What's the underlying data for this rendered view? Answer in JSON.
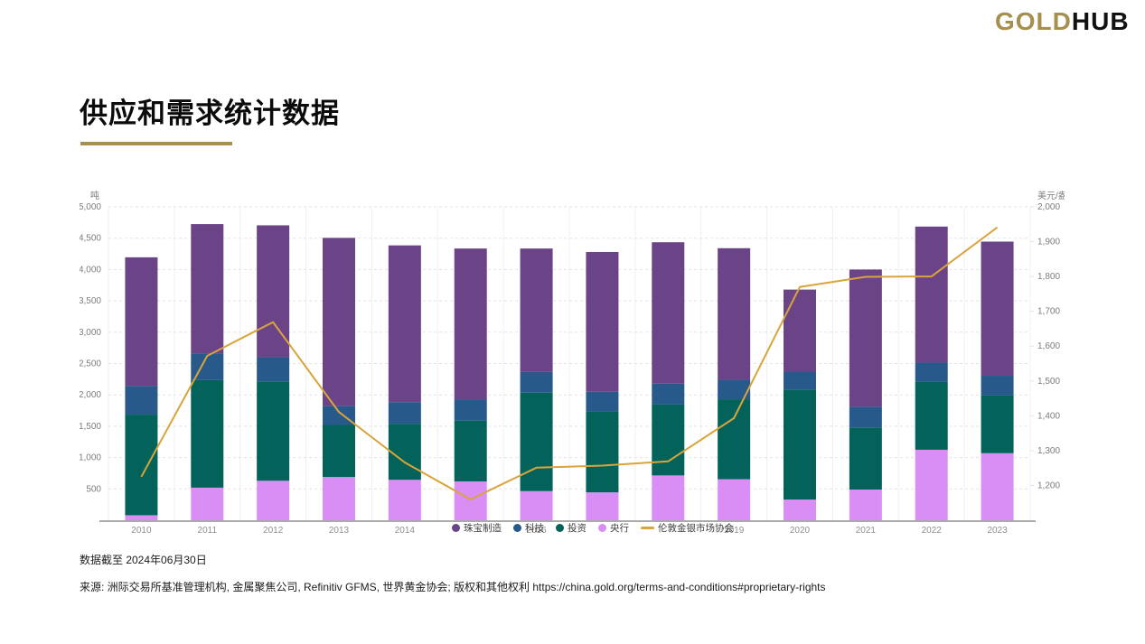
{
  "logo": {
    "gold": "GOLD",
    "hub": "HUB"
  },
  "page_title": "供应和需求统计数据",
  "footer": {
    "data_as_of": "数据截至 2024年06月30日",
    "source": "来源:  洲际交易所基准管理机构, 金属聚焦公司, Refinitiv GFMS, 世界黄金协会; 版权和其他权利 https://china.gold.org/terms-and-conditions#proprietary-rights"
  },
  "colors": {
    "brand_gold": "#a5904f",
    "jewellery_purple": "#6b4487",
    "technology_blue": "#27598b",
    "investment_teal": "#03635a",
    "central_bank_violet": "#d98ef5",
    "price_line_gold": "#d9a43b",
    "gridline": "#e3e3e3",
    "axis_line": "#aaaaaa",
    "tick_text": "#7c7c7c",
    "x_label_text": "#8f8f8f"
  },
  "chart_data": {
    "type": "bar",
    "subtype": "stacked-bars-with-line-overlay",
    "categories": [
      "2010",
      "2011",
      "2012",
      "2013",
      "2014",
      "2015",
      "2016",
      "2017",
      "2018",
      "2019",
      "2020",
      "2021",
      "2022",
      "2023"
    ],
    "series": [
      {
        "name": "珠宝制造",
        "type": "bar",
        "color": "#6b4487",
        "values": [
          2050,
          2065,
          2105,
          2680,
          2500,
          2405,
          1970,
          2230,
          2255,
          2100,
          1310,
          2190,
          2170,
          2140
        ]
      },
      {
        "name": "科技",
        "type": "bar",
        "color": "#27598b",
        "values": [
          460,
          425,
          385,
          305,
          345,
          340,
          330,
          320,
          330,
          310,
          285,
          330,
          305,
          315
        ]
      },
      {
        "name": "投资",
        "type": "bar",
        "color": "#03635a",
        "values": [
          1605,
          1715,
          1585,
          830,
          895,
          970,
          1570,
          1285,
          1135,
          1275,
          1755,
          990,
          1085,
          920
        ]
      },
      {
        "name": "央行",
        "type": "bar",
        "color": "#d98ef5",
        "values": [
          80,
          520,
          630,
          690,
          645,
          620,
          465,
          445,
          715,
          655,
          330,
          490,
          1125,
          1070
        ]
      }
    ],
    "stacking_order_bottom_to_top": [
      "央行",
      "投资",
      "科技",
      "珠宝制造"
    ],
    "line": {
      "name": "伦敦金银市场协会",
      "color": "#d9a43b",
      "axis": "right",
      "values": [
        1225,
        1572,
        1669,
        1411,
        1266,
        1160,
        1251,
        1257,
        1269,
        1393,
        1770,
        1799,
        1800,
        1941
      ]
    },
    "left_axis": {
      "unit": "吨",
      "min": 0,
      "max": 5000,
      "ticks": [
        500,
        1000,
        1500,
        2000,
        2500,
        3000,
        3500,
        4000,
        4500,
        5000
      ]
    },
    "right_axis": {
      "unit": "美元/盎司",
      "min": 1100,
      "max": 2000,
      "ticks": [
        1200,
        1300,
        1400,
        1500,
        1600,
        1700,
        1800,
        1900,
        2000
      ]
    },
    "grid": "horizontal-dashed-and-light-vertical",
    "legend_position": "bottom-center-overlapping-x-axis"
  }
}
